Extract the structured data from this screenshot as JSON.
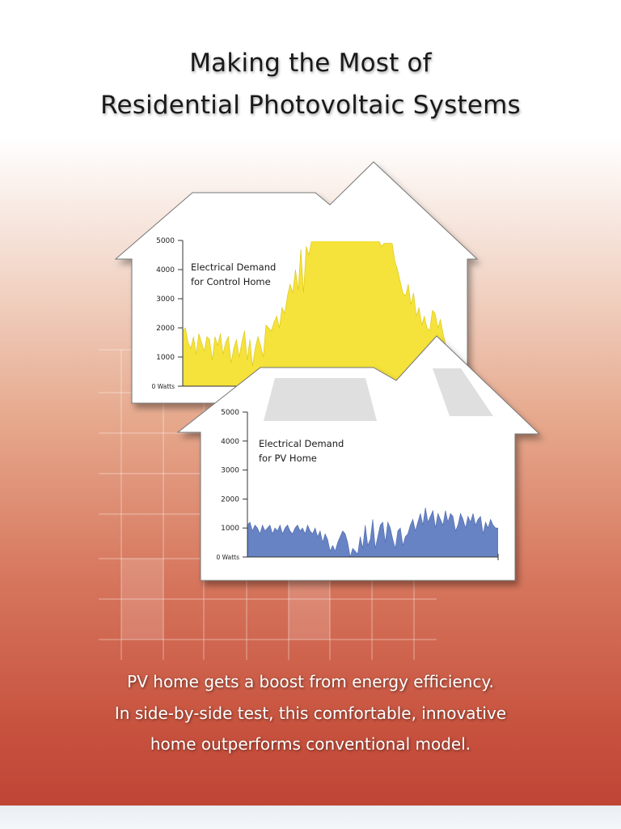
{
  "title": {
    "line1": "Making the Most of",
    "line2": "Residential Photovoltaic Systems"
  },
  "caption": {
    "line1": "PV home gets a boost from energy efficiency.",
    "line2": "In side-by-side test, this comfortable, innovative",
    "line3": "home outperforms conventional model."
  },
  "colors": {
    "control_fill": "#f5e23a",
    "pv_fill": "#6783c4",
    "axis": "#333333"
  },
  "chart_data": [
    {
      "type": "area",
      "label_line1": "Electrical Demand",
      "label_line2": "for Control Home",
      "ylim": [
        0,
        5000
      ],
      "yticks": [
        0,
        1000,
        2000,
        3000,
        4000,
        5000
      ],
      "ytick_labels": [
        "0 Watts",
        "1000",
        "2000",
        "3000",
        "4000",
        "5000"
      ],
      "xlim": [
        0,
        100
      ],
      "series": [
        {
          "x": [
            0,
            1,
            2,
            3,
            4,
            5,
            6,
            7,
            8,
            9,
            10,
            11,
            12,
            13,
            14,
            15,
            16,
            17,
            18,
            19,
            20,
            21,
            22,
            23,
            24,
            25,
            26,
            27,
            28,
            29,
            30,
            31,
            32,
            33,
            34,
            35,
            36,
            37,
            38,
            39,
            40,
            41,
            42,
            43,
            44,
            45,
            46,
            47,
            48,
            49,
            50,
            51,
            52,
            53,
            54,
            55,
            56,
            57,
            58,
            59,
            60,
            61,
            62,
            63,
            64,
            65,
            66,
            67,
            68,
            69,
            70,
            71,
            72,
            73,
            74,
            75,
            76,
            77,
            78,
            79,
            80,
            81,
            82,
            83,
            84,
            85,
            86,
            87,
            88,
            89,
            90,
            91,
            92,
            93,
            94,
            95,
            96,
            97,
            98,
            99,
            100
          ],
          "values": [
            1900,
            2000,
            1500,
            1300,
            1700,
            1100,
            1800,
            1500,
            1200,
            1700,
            1600,
            900,
            1700,
            1400,
            1800,
            1100,
            1500,
            1700,
            800,
            1300,
            1600,
            1000,
            1500,
            1900,
            900,
            1600,
            700,
            1300,
            1700,
            1400,
            1000,
            2100,
            2000,
            1900,
            2200,
            2400,
            2000,
            2700,
            2500,
            3100,
            3500,
            3200,
            4000,
            3300,
            4700,
            3200,
            4800,
            4500,
            5000,
            5000,
            5000,
            5000,
            5000,
            5000,
            5000,
            5000,
            5000,
            5000,
            5000,
            5000,
            5000,
            5000,
            5000,
            5000,
            5000,
            5000,
            5000,
            5000,
            5000,
            5000,
            5000,
            5000,
            5000,
            5000,
            4800,
            4900,
            4900,
            4900,
            4900,
            4300,
            4000,
            3600,
            3200,
            3100,
            3500,
            2800,
            3200,
            2400,
            2700,
            2100,
            2400,
            2000,
            1900,
            2600,
            2500,
            2000,
            2300,
            1800,
            1400,
            1100,
            900
          ]
        }
      ]
    },
    {
      "type": "area",
      "label_line1": "Electrical Demand",
      "label_line2": "for PV Home",
      "ylim": [
        0,
        5000
      ],
      "yticks": [
        0,
        1000,
        2000,
        3000,
        4000,
        5000
      ],
      "ytick_labels": [
        "0 Watts",
        "1000",
        "2000",
        "3000",
        "4000",
        "5000"
      ],
      "xlim": [
        0,
        100
      ],
      "series": [
        {
          "x": [
            0,
            1,
            2,
            3,
            4,
            5,
            6,
            7,
            8,
            9,
            10,
            11,
            12,
            13,
            14,
            15,
            16,
            17,
            18,
            19,
            20,
            21,
            22,
            23,
            24,
            25,
            26,
            27,
            28,
            29,
            30,
            31,
            32,
            33,
            34,
            35,
            36,
            37,
            38,
            39,
            40,
            41,
            42,
            43,
            44,
            45,
            46,
            47,
            48,
            49,
            50,
            51,
            52,
            53,
            54,
            55,
            56,
            57,
            58,
            59,
            60,
            61,
            62,
            63,
            64,
            65,
            66,
            67,
            68,
            69,
            70,
            71,
            72,
            73,
            74,
            75,
            76,
            77,
            78,
            79,
            80,
            81,
            82,
            83,
            84,
            85,
            86,
            87,
            88,
            89,
            90,
            91,
            92,
            93,
            94,
            95,
            96,
            97,
            98,
            99,
            100
          ],
          "values": [
            1100,
            1200,
            900,
            1100,
            1000,
            800,
            1100,
            900,
            1000,
            1100,
            800,
            1000,
            900,
            1100,
            800,
            1000,
            1100,
            900,
            800,
            1000,
            1100,
            900,
            1000,
            800,
            1100,
            900,
            800,
            1000,
            700,
            900,
            500,
            800,
            600,
            200,
            400,
            200,
            500,
            700,
            900,
            800,
            500,
            0,
            300,
            200,
            100,
            700,
            300,
            1100,
            400,
            600,
            1300,
            300,
            700,
            1100,
            1200,
            500,
            1200,
            1000,
            600,
            300,
            900,
            1000,
            400,
            700,
            800,
            1100,
            1300,
            900,
            1200,
            1500,
            1100,
            1700,
            1200,
            1400,
            1600,
            1000,
            1500,
            1300,
            1100,
            1600,
            1200,
            1500,
            1400,
            900,
            1100,
            1500,
            1300,
            1000,
            1400,
            1200,
            1500,
            1100,
            1300,
            1400,
            800,
            1200,
            1000,
            1300,
            1100,
            1000,
            1000
          ]
        }
      ]
    }
  ]
}
